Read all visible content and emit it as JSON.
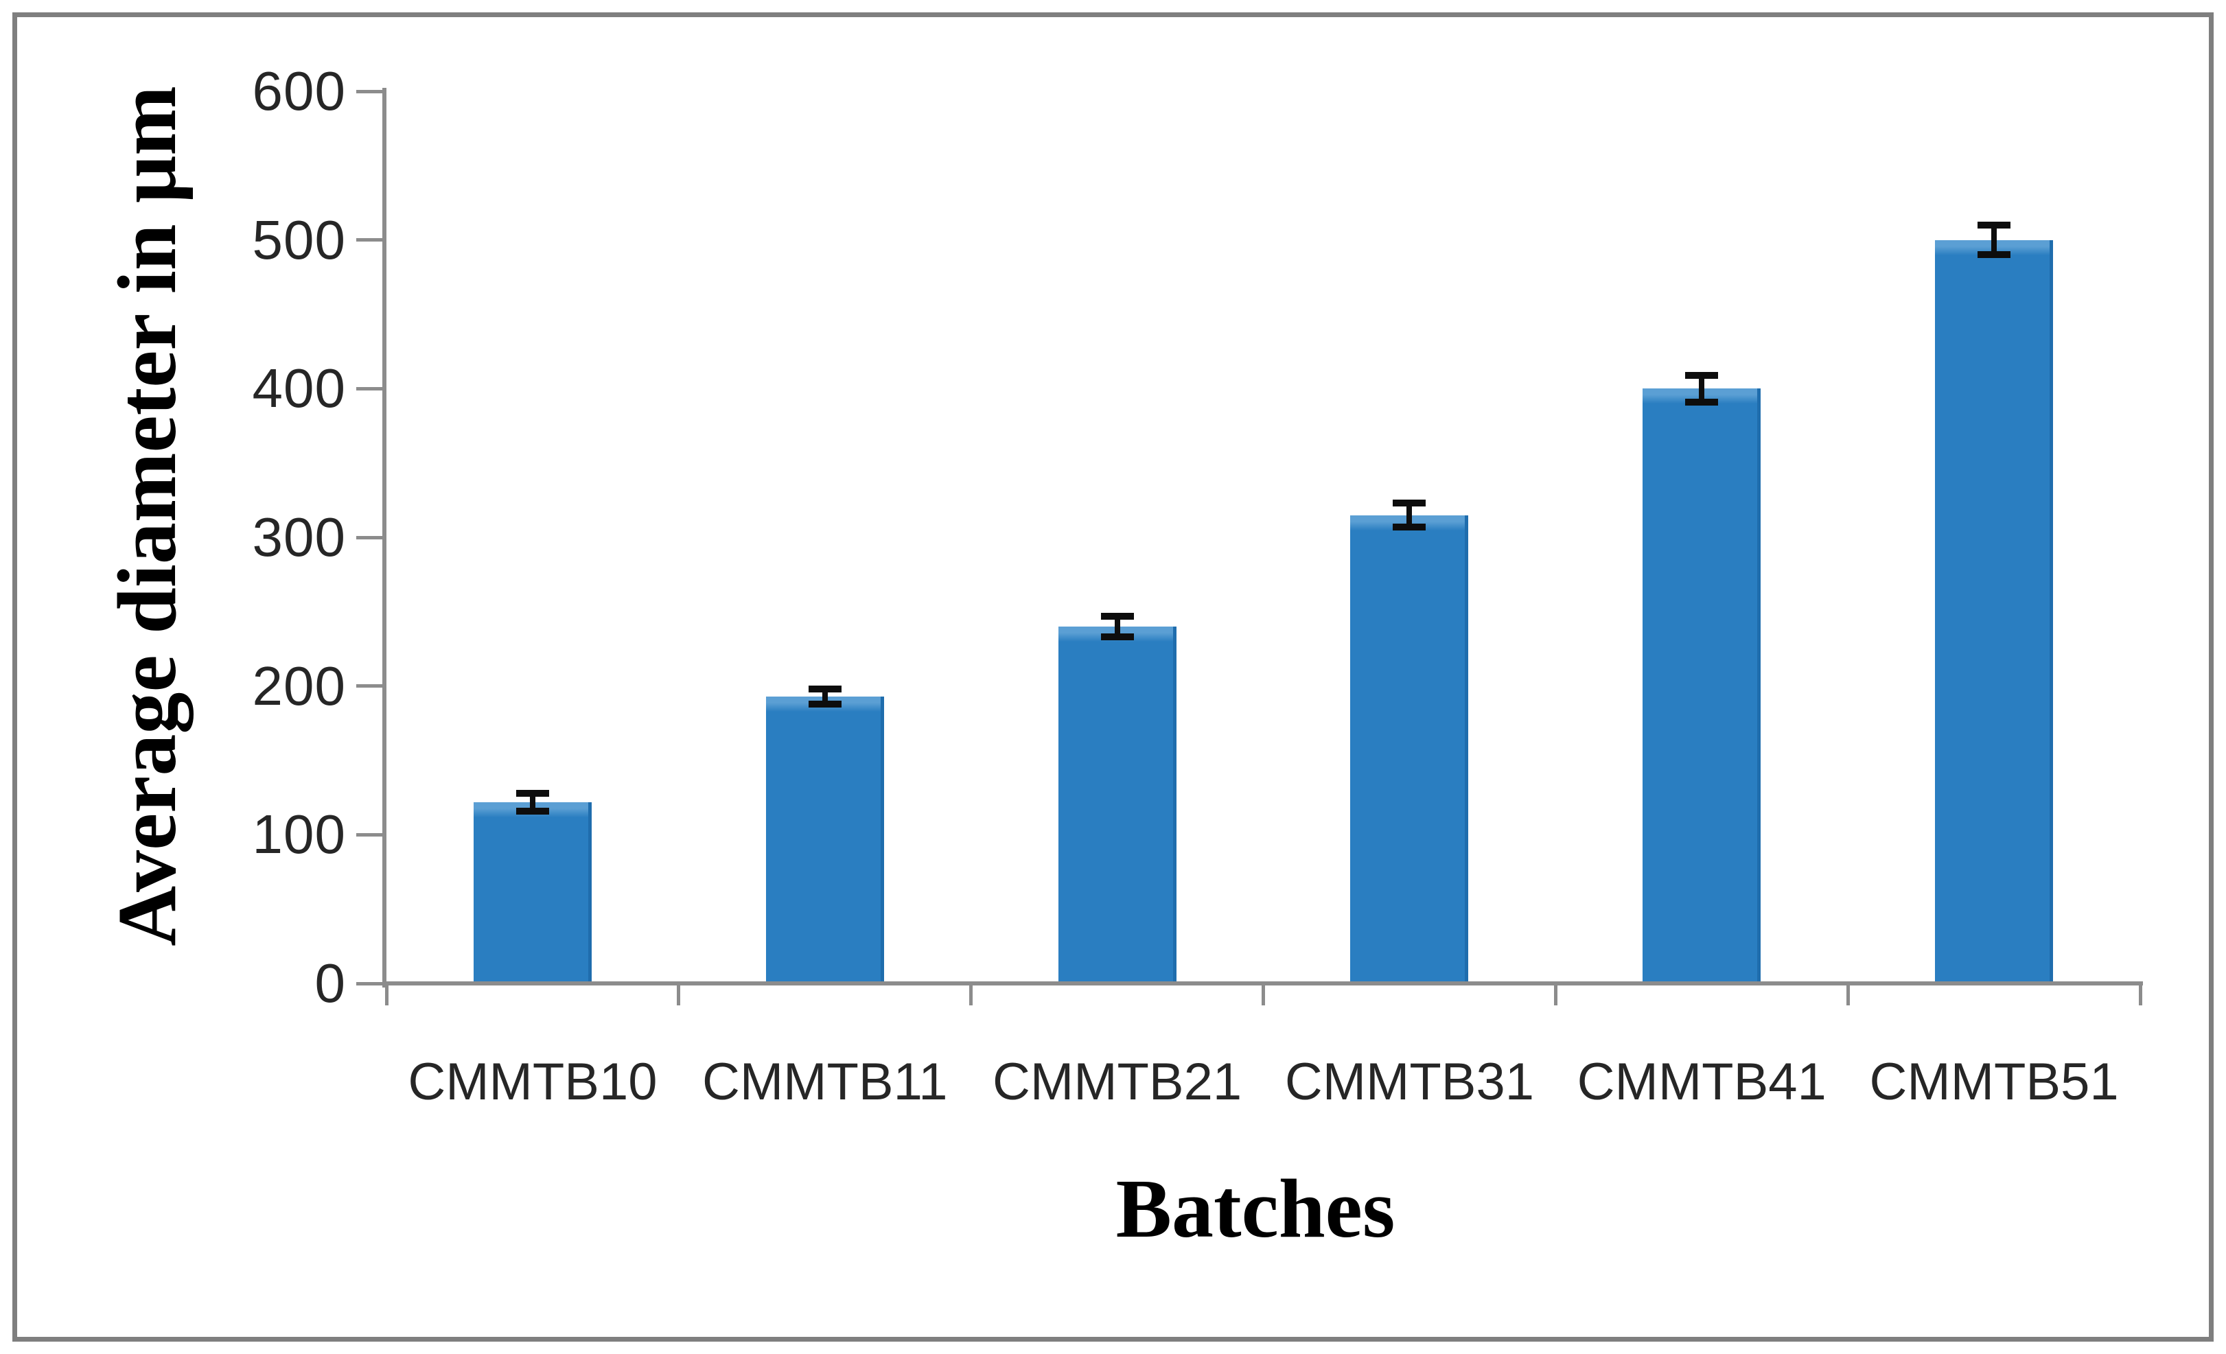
{
  "figure": {
    "background": "#ffffff",
    "border_color": "#7f7f7f"
  },
  "chart_data": {
    "type": "bar",
    "title": "",
    "xlabel": "Batches",
    "ylabel": "Average diameter in μm",
    "categories": [
      "CMMTB10",
      "CMMTB11",
      "CMMTB21",
      "CMMTB31",
      "CMMTB41",
      "CMMTB51"
    ],
    "series": [
      {
        "name": "Average diameter",
        "values": [
          122,
          193,
          240,
          315,
          400,
          500
        ],
        "errors": [
          6,
          5,
          7,
          8,
          9,
          10
        ]
      }
    ],
    "ylim": [
      0,
      600
    ],
    "yticks": [
      0,
      100,
      200,
      300,
      400,
      500,
      600
    ],
    "grid": false,
    "legend": false,
    "bar_color": "#2a7ec1",
    "bar_top_highlight": "#5b9fd4",
    "bar_edge_color": "#1f6dad",
    "error_bar_color": "#0d0d0d",
    "axis_color": "#8c8c8c",
    "tick_label_color": "#262626"
  }
}
